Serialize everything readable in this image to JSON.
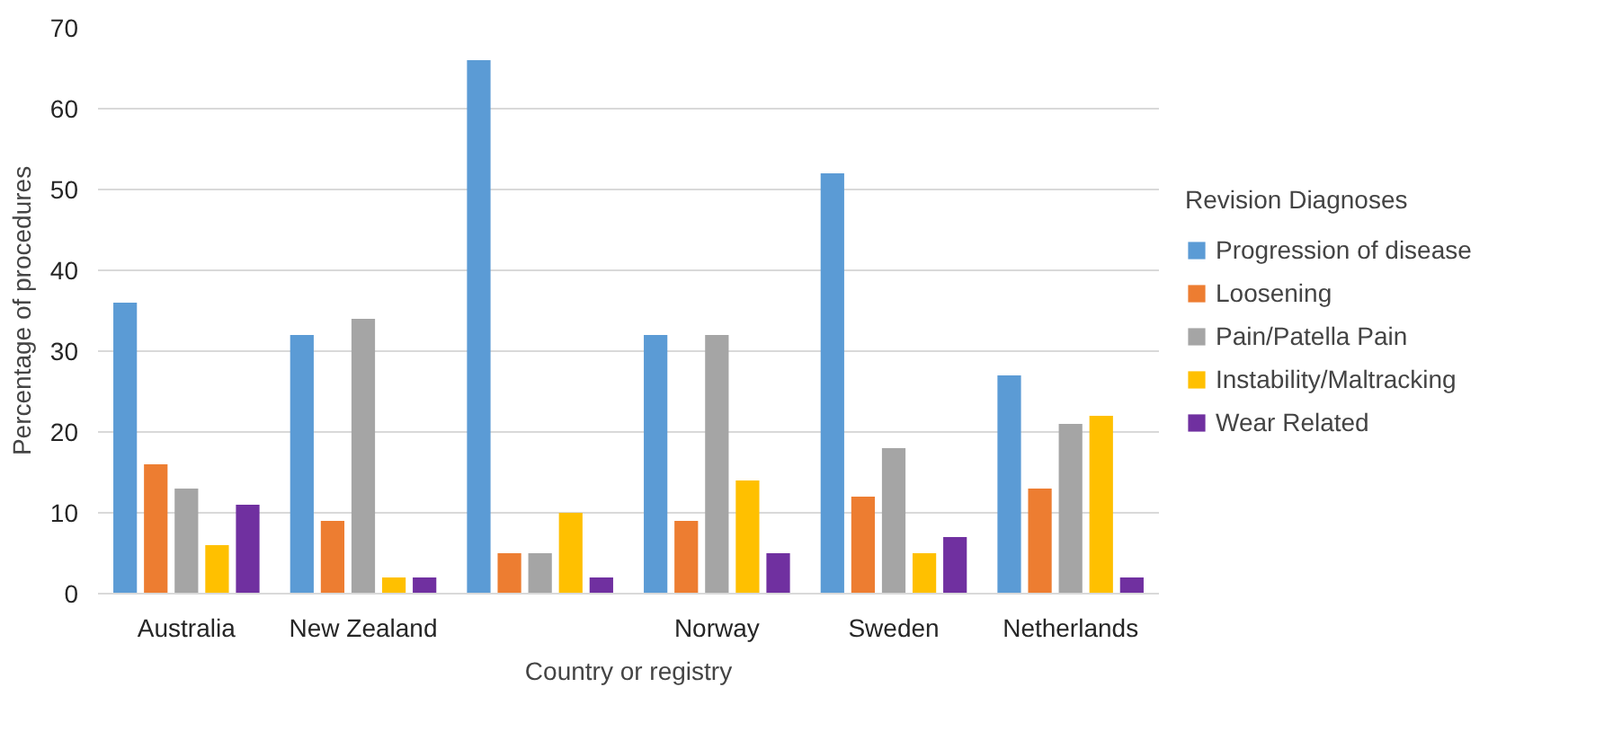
{
  "chart_data": {
    "type": "bar",
    "xlabel": "Country or registry",
    "ylabel": "Percentage of procedures",
    "legend_title": "Revision Diagnoses",
    "categories": [
      "Australia",
      "New Zealand",
      null,
      "Norway",
      "Sweden",
      "Netherlands"
    ],
    "series": [
      {
        "name": "Progression of disease",
        "color": "#5b9bd5",
        "values": [
          36,
          32,
          66,
          32,
          52,
          27
        ]
      },
      {
        "name": "Loosening",
        "color": "#ed7d31",
        "values": [
          16,
          9,
          5,
          9,
          12,
          13
        ]
      },
      {
        "name": "Pain/Patella Pain",
        "color": "#a5a5a5",
        "values": [
          13,
          34,
          5,
          32,
          18,
          21
        ]
      },
      {
        "name": "Instability/Maltracking",
        "color": "#ffc000",
        "values": [
          6,
          2,
          10,
          14,
          5,
          22
        ]
      },
      {
        "name": "Wear Related",
        "color": "#7030a0",
        "values": [
          11,
          2,
          2,
          5,
          7,
          2
        ]
      }
    ],
    "ylim": [
      0,
      70
    ],
    "yticks": [
      0,
      10,
      20,
      30,
      40,
      50,
      60,
      70
    ],
    "grid": "y",
    "legend": "right"
  }
}
